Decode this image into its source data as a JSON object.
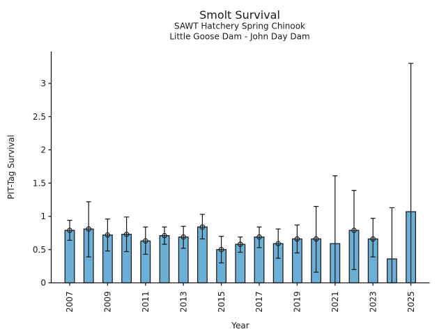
{
  "chart_data": {
    "type": "bar",
    "title": "Smolt Survival",
    "subtitle_line1": "SAWT Hatchery Spring Chinook",
    "subtitle_line2": "Little Goose Dam - John Day Dam",
    "xlabel": "Year",
    "ylabel": "PIT-Tag Survival",
    "ylim": [
      0,
      3.48
    ],
    "grid": false,
    "legend": "none",
    "bar_color": "#6baed6",
    "edge_color": "#1a1a1a",
    "error_bar_color": "#1a1a1a",
    "ytick_labels": [
      "0",
      "0.5",
      "1",
      "1.5",
      "2",
      "2.5",
      "3"
    ],
    "xtick_labels": [
      "2007",
      "2009",
      "2011",
      "2013",
      "2015",
      "2017",
      "2019",
      "2021",
      "2023",
      "2025"
    ],
    "categories": [
      2007,
      2008,
      2009,
      2010,
      2011,
      2012,
      2013,
      2014,
      2015,
      2016,
      2017,
      2018,
      2019,
      2020,
      2021,
      2022,
      2023,
      2024,
      2025
    ],
    "values": [
      0.79,
      0.81,
      0.72,
      0.73,
      0.63,
      0.71,
      0.69,
      0.84,
      0.5,
      0.58,
      0.69,
      0.59,
      0.66,
      0.66,
      0.59,
      0.79,
      0.66,
      0.36,
      1.07
    ],
    "error_low": [
      0.64,
      0.39,
      0.48,
      0.47,
      0.43,
      0.58,
      0.52,
      0.66,
      0.3,
      0.46,
      0.53,
      0.37,
      0.45,
      0.16,
      0.0,
      0.2,
      0.39,
      0.0,
      0.0
    ],
    "error_high": [
      0.94,
      1.22,
      0.96,
      0.99,
      0.84,
      0.84,
      0.85,
      1.03,
      0.7,
      0.69,
      0.84,
      0.81,
      0.87,
      1.15,
      1.61,
      1.39,
      0.97,
      1.13,
      3.3
    ],
    "point_marker": [
      true,
      true,
      true,
      true,
      true,
      true,
      true,
      true,
      true,
      true,
      true,
      true,
      true,
      true,
      false,
      true,
      true,
      false,
      false
    ]
  }
}
